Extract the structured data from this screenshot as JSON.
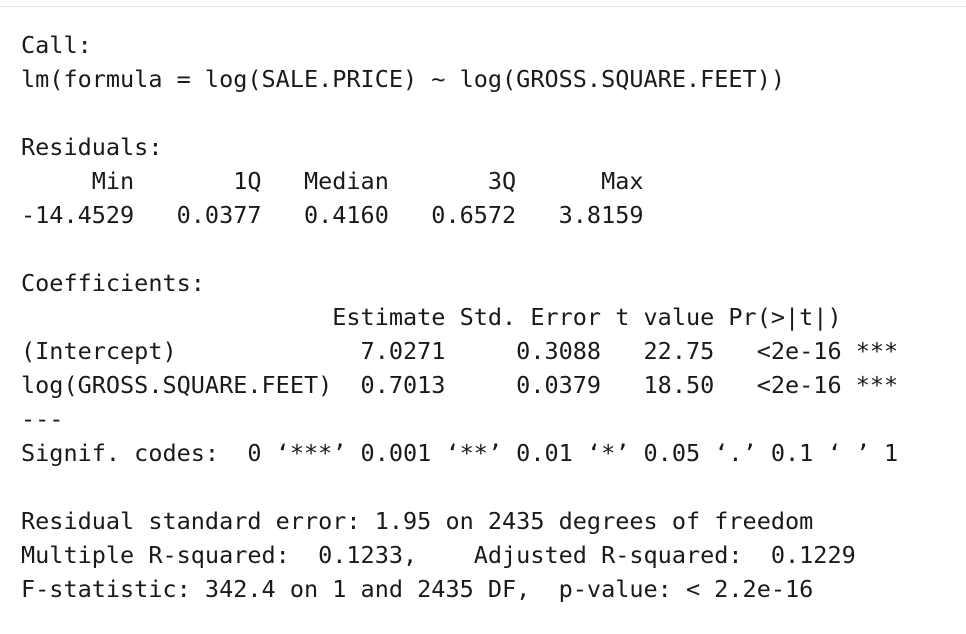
{
  "output": {
    "call_header": "Call:",
    "call_formula": "lm(formula = log(SALE.PRICE) ~ log(GROSS.SQUARE.FEET))",
    "residuals_header": "Residuals:",
    "residuals_labels": "     Min       1Q   Median       3Q      Max",
    "residuals_values": "-14.4529   0.0377   0.4160   0.6572   3.8159",
    "coefficients_header": "Coefficients:",
    "coefficients_columns": "                      Estimate Std. Error t value Pr(>|t|)",
    "coefficient_row_intercept": "(Intercept)             7.0271     0.3088   22.75   <2e-16 ***",
    "coefficient_row_slope": "log(GROSS.SQUARE.FEET)  0.7013     0.0379   18.50   <2e-16 ***",
    "separator": "---",
    "signif_codes": "Signif. codes:  0 ‘***’ 0.001 ‘**’ 0.01 ‘*’ 0.05 ‘.’ 0.1 ‘ ’ 1",
    "residual_std_error": "Residual standard error: 1.95 on 2435 degrees of freedom",
    "r_squared": "Multiple R-squared:  0.1233,    Adjusted R-squared:  0.1229",
    "f_statistic": "F-statistic: 342.4 on 1 and 2435 DF,  p-value: < 2.2e-16"
  }
}
